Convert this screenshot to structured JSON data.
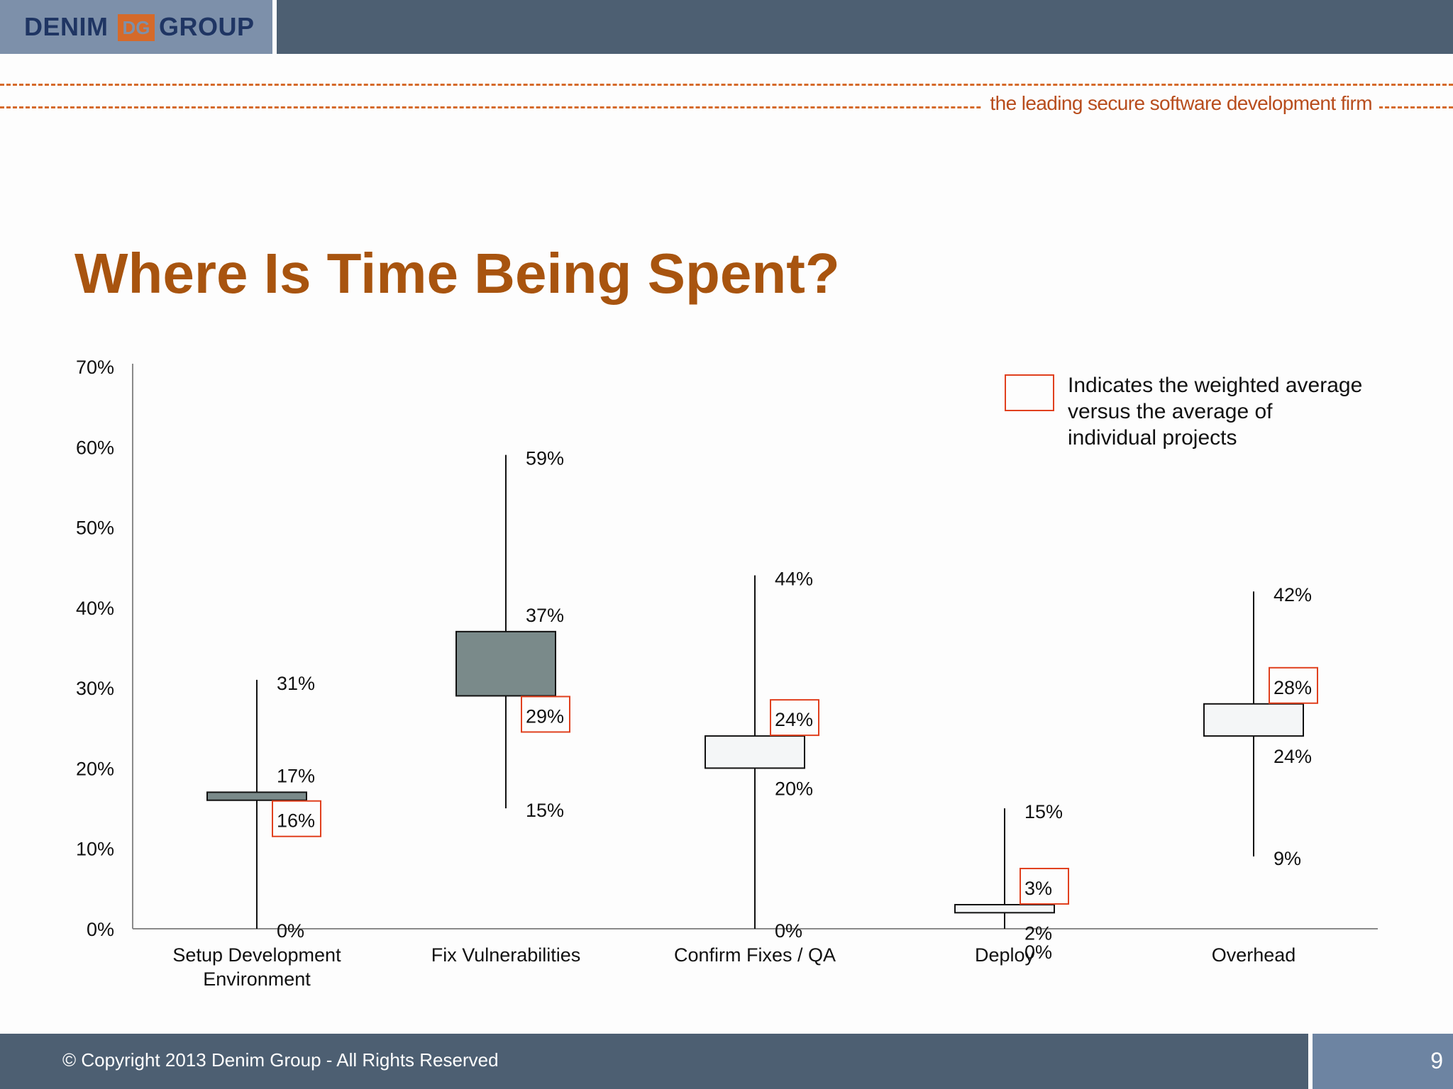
{
  "header": {
    "logo_left": "DENIM",
    "logo_right": "GROUP",
    "logo_mark": "DG",
    "tagline": "the leading secure software development firm"
  },
  "title": "Where Is Time Being Spent?",
  "chart_data": {
    "type": "candlestick",
    "title": "",
    "xlabel": "",
    "ylabel": "",
    "ylim": [
      0,
      70
    ],
    "yticks": [
      "0%",
      "10%",
      "20%",
      "30%",
      "40%",
      "50%",
      "60%",
      "70%"
    ],
    "grid": false,
    "legend": {
      "text_lines": [
        "Indicates the weighted average",
        "versus the average of",
        "individual projects"
      ],
      "placement": "top-right",
      "color": "#e0401e"
    },
    "categories": [
      {
        "label_lines": [
          "Setup Development",
          "Environment"
        ],
        "max": 31,
        "min": 0,
        "box_top": 17,
        "box_bottom": 16,
        "fill": "#7a8a8a",
        "labels": {
          "max": "31%",
          "box_top": "17%",
          "box_bottom": "16%",
          "min": "0%"
        },
        "highlight": "box_bottom"
      },
      {
        "label_lines": [
          "Fix Vulnerabilities"
        ],
        "max": 59,
        "min": 15,
        "box_top": 37,
        "box_bottom": 29,
        "fill": "#7a8a8a",
        "labels": {
          "max": "59%",
          "box_top": "37%",
          "box_bottom": "29%",
          "min": "15%"
        },
        "highlight": "box_bottom"
      },
      {
        "label_lines": [
          "Confirm Fixes / QA"
        ],
        "max": 44,
        "min": 0,
        "box_top": 24,
        "box_bottom": 20,
        "fill": "#f4f6f7",
        "labels": {
          "max": "44%",
          "box_top": "24%",
          "box_bottom": "20%",
          "min": "0%"
        },
        "highlight": "box_top"
      },
      {
        "label_lines": [
          "Deploy"
        ],
        "max": 15,
        "min": 0,
        "box_top": 3,
        "box_bottom": 2,
        "fill": "#f4f6f7",
        "labels": {
          "max": "15%",
          "box_top": "3%",
          "box_bottom": "2%",
          "min": "0%"
        },
        "highlight": "box_top"
      },
      {
        "label_lines": [
          "Overhead"
        ],
        "max": 42,
        "min": 9,
        "box_top": 28,
        "box_bottom": 24,
        "fill": "#f4f6f7",
        "labels": {
          "max": "42%",
          "box_top": "28%",
          "box_bottom": "24%",
          "min": "9%"
        },
        "highlight": "box_top"
      }
    ]
  },
  "footer": {
    "copyright": "© Copyright 2013  Denim Group - All Rights Reserved",
    "page_number": "9"
  },
  "colors": {
    "header": "#4d5f72",
    "logo_bg": "#7d90aa",
    "logo_text": "#1f3563",
    "logo_mark": "#d56a2a",
    "title": "#a8540f",
    "dash": "#d56a2a",
    "highlight": "#e0401e"
  }
}
